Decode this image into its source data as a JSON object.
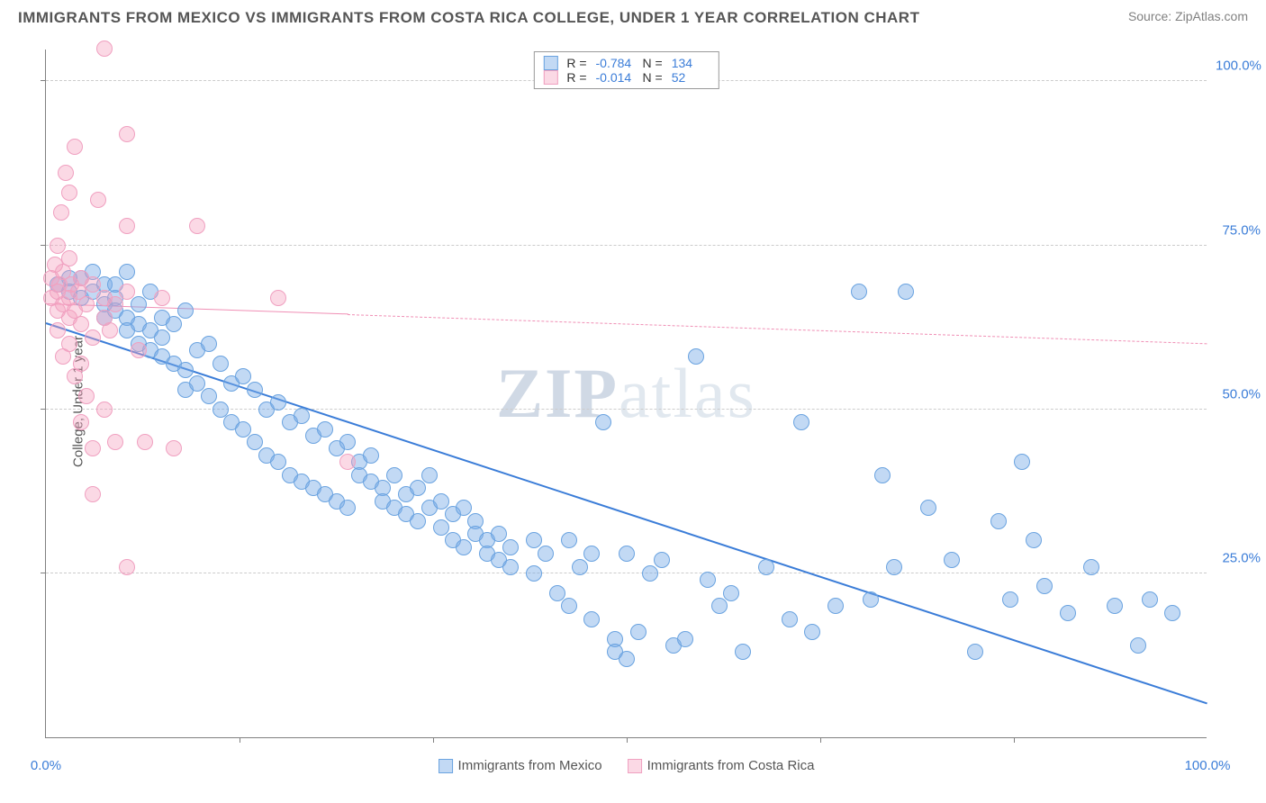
{
  "header": {
    "title": "IMMIGRANTS FROM MEXICO VS IMMIGRANTS FROM COSTA RICA COLLEGE, UNDER 1 YEAR CORRELATION CHART",
    "source": "Source: ZipAtlas.com"
  },
  "chart": {
    "type": "scatter",
    "y_label": "College, Under 1 year",
    "watermark_bold": "ZIP",
    "watermark_light": "atlas",
    "background_color": "#ffffff",
    "grid_color": "#cccccc",
    "axis_color": "#808080",
    "tick_label_color": "#3b7dd8",
    "xlim": [
      0,
      100
    ],
    "ylim": [
      0,
      105
    ],
    "y_ticks": [
      {
        "v": 25,
        "label": "25.0%"
      },
      {
        "v": 50,
        "label": "50.0%"
      },
      {
        "v": 75,
        "label": "75.0%"
      },
      {
        "v": 100,
        "label": "100.0%"
      }
    ],
    "x_ticks_minor": [
      16.67,
      33.33,
      50,
      66.67,
      83.33
    ],
    "x_tick_labels": [
      {
        "v": 0,
        "label": "0.0%"
      },
      {
        "v": 100,
        "label": "100.0%"
      }
    ],
    "series": [
      {
        "name": "Immigrants from Mexico",
        "fill_color": "rgba(120,170,230,0.45)",
        "stroke_color": "#6aa3e0",
        "marker_radius": 9,
        "points": [
          [
            1,
            69
          ],
          [
            2,
            70
          ],
          [
            2,
            68
          ],
          [
            3,
            70
          ],
          [
            3,
            67
          ],
          [
            4,
            71
          ],
          [
            4,
            68
          ],
          [
            5,
            69
          ],
          [
            5,
            66
          ],
          [
            5,
            64
          ],
          [
            6,
            67
          ],
          [
            6,
            65
          ],
          [
            6,
            69
          ],
          [
            7,
            71
          ],
          [
            7,
            64
          ],
          [
            7,
            62
          ],
          [
            8,
            66
          ],
          [
            8,
            63
          ],
          [
            8,
            60
          ],
          [
            9,
            68
          ],
          [
            9,
            62
          ],
          [
            9,
            59
          ],
          [
            10,
            64
          ],
          [
            10,
            61
          ],
          [
            10,
            58
          ],
          [
            11,
            63
          ],
          [
            11,
            57
          ],
          [
            12,
            65
          ],
          [
            12,
            56
          ],
          [
            12,
            53
          ],
          [
            13,
            59
          ],
          [
            13,
            54
          ],
          [
            14,
            60
          ],
          [
            14,
            52
          ],
          [
            15,
            57
          ],
          [
            15,
            50
          ],
          [
            16,
            54
          ],
          [
            16,
            48
          ],
          [
            17,
            55
          ],
          [
            17,
            47
          ],
          [
            18,
            53
          ],
          [
            18,
            45
          ],
          [
            19,
            50
          ],
          [
            19,
            43
          ],
          [
            20,
            51
          ],
          [
            20,
            42
          ],
          [
            21,
            48
          ],
          [
            21,
            40
          ],
          [
            22,
            49
          ],
          [
            22,
            39
          ],
          [
            23,
            46
          ],
          [
            23,
            38
          ],
          [
            24,
            47
          ],
          [
            24,
            37
          ],
          [
            25,
            44
          ],
          [
            25,
            36
          ],
          [
            26,
            45
          ],
          [
            26,
            35
          ],
          [
            27,
            42
          ],
          [
            27,
            40
          ],
          [
            28,
            43
          ],
          [
            28,
            39
          ],
          [
            29,
            38
          ],
          [
            29,
            36
          ],
          [
            30,
            40
          ],
          [
            30,
            35
          ],
          [
            31,
            37
          ],
          [
            31,
            34
          ],
          [
            32,
            38
          ],
          [
            32,
            33
          ],
          [
            33,
            35
          ],
          [
            33,
            40
          ],
          [
            34,
            36
          ],
          [
            34,
            32
          ],
          [
            35,
            34
          ],
          [
            35,
            30
          ],
          [
            36,
            35
          ],
          [
            36,
            29
          ],
          [
            37,
            33
          ],
          [
            37,
            31
          ],
          [
            38,
            30
          ],
          [
            38,
            28
          ],
          [
            39,
            31
          ],
          [
            39,
            27
          ],
          [
            40,
            29
          ],
          [
            40,
            26
          ],
          [
            42,
            30
          ],
          [
            42,
            25
          ],
          [
            43,
            28
          ],
          [
            44,
            22
          ],
          [
            45,
            30
          ],
          [
            45,
            20
          ],
          [
            46,
            26
          ],
          [
            47,
            28
          ],
          [
            47,
            18
          ],
          [
            48,
            48
          ],
          [
            49,
            15
          ],
          [
            49,
            13
          ],
          [
            50,
            28
          ],
          [
            50,
            12
          ],
          [
            51,
            16
          ],
          [
            52,
            25
          ],
          [
            53,
            27
          ],
          [
            54,
            14
          ],
          [
            55,
            15
          ],
          [
            56,
            58
          ],
          [
            57,
            24
          ],
          [
            58,
            20
          ],
          [
            59,
            22
          ],
          [
            60,
            13
          ],
          [
            62,
            26
          ],
          [
            64,
            18
          ],
          [
            65,
            48
          ],
          [
            66,
            16
          ],
          [
            68,
            20
          ],
          [
            70,
            68
          ],
          [
            71,
            21
          ],
          [
            72,
            40
          ],
          [
            73,
            26
          ],
          [
            74,
            68
          ],
          [
            76,
            35
          ],
          [
            78,
            27
          ],
          [
            80,
            13
          ],
          [
            82,
            33
          ],
          [
            83,
            21
          ],
          [
            84,
            42
          ],
          [
            85,
            30
          ],
          [
            86,
            23
          ],
          [
            88,
            19
          ],
          [
            90,
            26
          ],
          [
            92,
            20
          ],
          [
            94,
            14
          ],
          [
            95,
            21
          ],
          [
            97,
            19
          ]
        ],
        "trend": {
          "x1": 0,
          "y1": 63,
          "x2": 100,
          "y2": 5,
          "color": "#3b7dd8",
          "width": 2.5,
          "dash": "solid",
          "solid_to_x": 100
        }
      },
      {
        "name": "Immigrants from Costa Rica",
        "fill_color": "rgba(245,160,190,0.4)",
        "stroke_color": "#f0a0c0",
        "marker_radius": 9,
        "points": [
          [
            0.5,
            70
          ],
          [
            0.5,
            67
          ],
          [
            0.8,
            72
          ],
          [
            1,
            68
          ],
          [
            1,
            65
          ],
          [
            1,
            75
          ],
          [
            1,
            62
          ],
          [
            1.2,
            69
          ],
          [
            1.3,
            80
          ],
          [
            1.5,
            66
          ],
          [
            1.5,
            71
          ],
          [
            1.5,
            58
          ],
          [
            1.7,
            86
          ],
          [
            2,
            83
          ],
          [
            2,
            67
          ],
          [
            2,
            64
          ],
          [
            2,
            73
          ],
          [
            2,
            60
          ],
          [
            2.2,
            69
          ],
          [
            2.5,
            65
          ],
          [
            2.5,
            90
          ],
          [
            2.5,
            55
          ],
          [
            2.8,
            68
          ],
          [
            3,
            70
          ],
          [
            3,
            63
          ],
          [
            3,
            57
          ],
          [
            3,
            48
          ],
          [
            3.5,
            66
          ],
          [
            3.5,
            52
          ],
          [
            4,
            69
          ],
          [
            4,
            61
          ],
          [
            4,
            44
          ],
          [
            4,
            37
          ],
          [
            4.5,
            82
          ],
          [
            5,
            64
          ],
          [
            5,
            67
          ],
          [
            5,
            50
          ],
          [
            5,
            105
          ],
          [
            5.5,
            62
          ],
          [
            6,
            66
          ],
          [
            6,
            45
          ],
          [
            7,
            78
          ],
          [
            7,
            68
          ],
          [
            7,
            92
          ],
          [
            7,
            26
          ],
          [
            8,
            59
          ],
          [
            8.5,
            45
          ],
          [
            10,
            67
          ],
          [
            11,
            44
          ],
          [
            13,
            78
          ],
          [
            20,
            67
          ],
          [
            26,
            42
          ]
        ],
        "trend": {
          "x1": 0,
          "y1": 66,
          "x2": 100,
          "y2": 60,
          "color": "#f08fb5",
          "width": 1.5,
          "dash": "dashed",
          "solid_to_x": 26
        }
      }
    ],
    "legend_top": [
      {
        "swatch_fill": "rgba(120,170,230,0.45)",
        "swatch_stroke": "#6aa3e0",
        "R": "-0.784",
        "N": "134"
      },
      {
        "swatch_fill": "rgba(245,160,190,0.4)",
        "swatch_stroke": "#f0a0c0",
        "R": "-0.014",
        "N": "52"
      }
    ],
    "legend_bottom": [
      {
        "swatch_fill": "rgba(120,170,230,0.45)",
        "swatch_stroke": "#6aa3e0",
        "label": "Immigrants from Mexico"
      },
      {
        "swatch_fill": "rgba(245,160,190,0.4)",
        "swatch_stroke": "#f0a0c0",
        "label": "Immigrants from Costa Rica"
      }
    ]
  }
}
